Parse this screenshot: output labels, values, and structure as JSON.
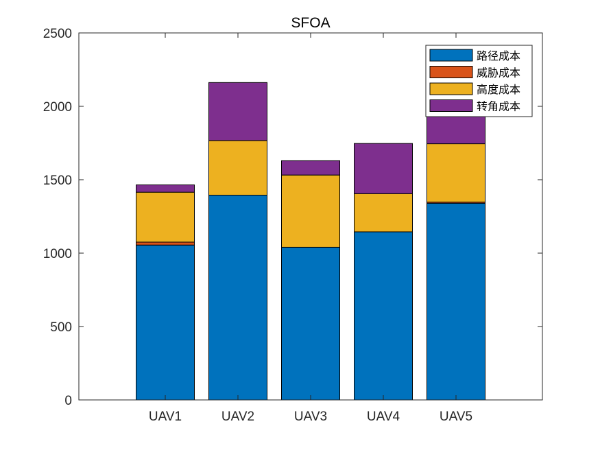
{
  "chart_data": {
    "type": "bar",
    "stacked": true,
    "title": "SFOA",
    "xlabel": "",
    "ylabel": "",
    "categories": [
      "UAV1",
      "UAV2",
      "UAV3",
      "UAV4",
      "UAV5"
    ],
    "ylim": [
      0,
      2500
    ],
    "yticks": [
      0,
      500,
      1000,
      1500,
      2000,
      2500
    ],
    "grid": false,
    "legend_position": "top-right",
    "series": [
      {
        "name": "路径成本",
        "color": "#0072BD",
        "values": [
          1055,
          1395,
          1040,
          1145,
          1340
        ]
      },
      {
        "name": "威胁成本",
        "color": "#D95319",
        "values": [
          20,
          0,
          0,
          0,
          8
        ]
      },
      {
        "name": "高度成本",
        "color": "#EDB120",
        "values": [
          340,
          372,
          492,
          260,
          397
        ]
      },
      {
        "name": "转角成本",
        "color": "#7E2F8E",
        "values": [
          50,
          395,
          98,
          342,
          255
        ]
      }
    ]
  }
}
